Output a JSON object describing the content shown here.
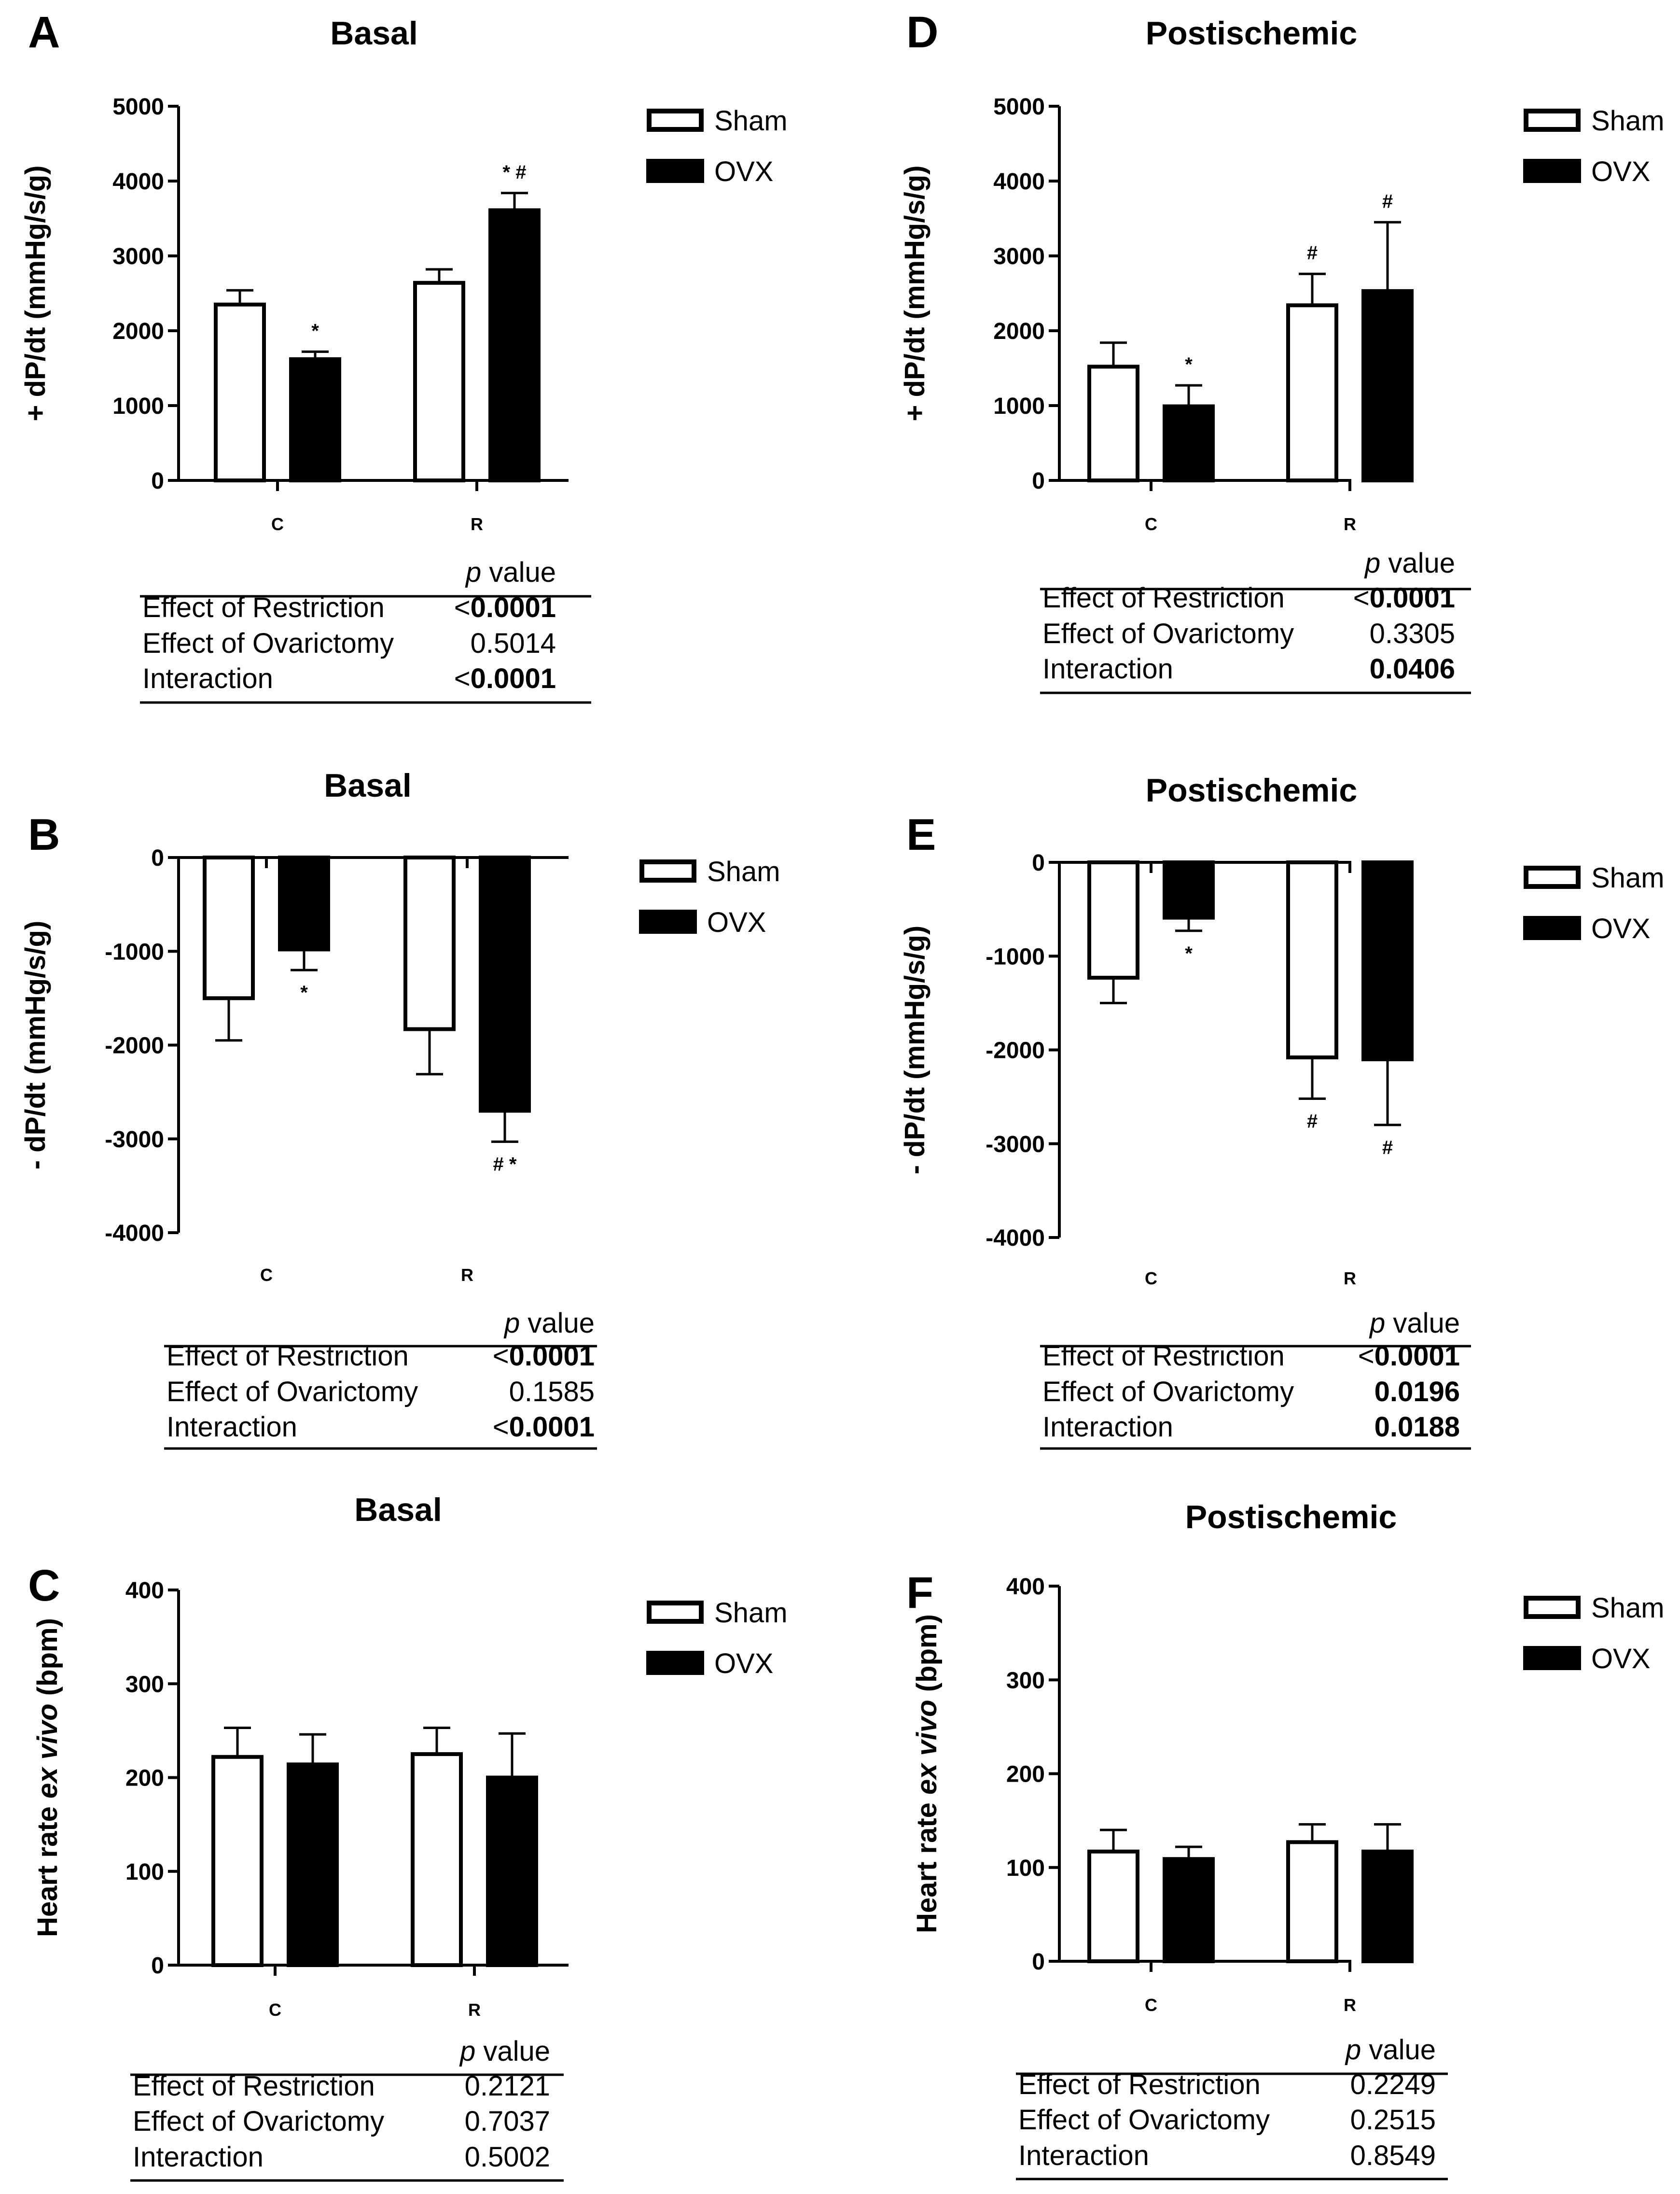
{
  "legend": {
    "sham": "Sham",
    "ovx": "OVX",
    "sham_color": "#ffffff",
    "ovx_color": "#000000"
  },
  "table_header": {
    "p": "p",
    "value": " value"
  },
  "chart_data": [
    {
      "panel": "A",
      "title": "Basal",
      "type": "bar",
      "ylabel": "+ dP/dt (mmHg/s/g)",
      "ylim": [
        0,
        5000
      ],
      "yticks": [
        0,
        1000,
        2000,
        3000,
        4000,
        5000
      ],
      "categories": [
        "C",
        "R"
      ],
      "series": [
        {
          "name": "Sham",
          "values": [
            2350,
            2640
          ],
          "errors": [
            190,
            180
          ]
        },
        {
          "name": "OVX",
          "values": [
            1620,
            3610
          ],
          "errors": [
            100,
            230
          ]
        }
      ],
      "annotations": [
        [
          "",
          "*"
        ],
        [
          "",
          "* #"
        ]
      ],
      "stats": [
        {
          "label": "Effect of Restriction",
          "prefix": "<",
          "value": "0.0001",
          "bold": true
        },
        {
          "label": "Effect of Ovarictomy",
          "prefix": "",
          "value": "0.5014",
          "bold": false
        },
        {
          "label": "Interaction",
          "prefix": "<",
          "value": "0.0001",
          "bold": true
        }
      ]
    },
    {
      "panel": "D",
      "title": "Postischemic",
      "type": "bar",
      "ylabel": "+ dP/dt (mmHg/s/g)",
      "ylim": [
        0,
        5000
      ],
      "yticks": [
        0,
        1000,
        2000,
        3000,
        4000,
        5000
      ],
      "categories": [
        "C",
        "R"
      ],
      "series": [
        {
          "name": "Sham",
          "values": [
            1520,
            2340
          ],
          "errors": [
            320,
            420
          ]
        },
        {
          "name": "OVX",
          "values": [
            990,
            2530
          ],
          "errors": [
            280,
            920
          ]
        }
      ],
      "annotations": [
        [
          "",
          "*"
        ],
        [
          "#",
          "#"
        ]
      ],
      "stats": [
        {
          "label": "Effect of Restriction",
          "prefix": "<",
          "value": "0.0001",
          "bold": true
        },
        {
          "label": "Effect of Ovarictomy",
          "prefix": "",
          "value": "0.3305",
          "bold": false
        },
        {
          "label": "Interaction",
          "prefix": "",
          "value": "0.0406",
          "bold": true
        }
      ]
    },
    {
      "panel": "B",
      "title": "Basal",
      "type": "bar",
      "ylabel": "- dP/dt (mmHg/s/g)",
      "ylim": [
        -4000,
        0
      ],
      "yticks": [
        0,
        -1000,
        -2000,
        -3000,
        -4000
      ],
      "categories": [
        "C",
        "R"
      ],
      "series": [
        {
          "name": "Sham",
          "values": [
            -1500,
            -1830
          ],
          "errors": [
            450,
            480
          ]
        },
        {
          "name": "OVX",
          "values": [
            -980,
            -2700
          ],
          "errors": [
            220,
            330
          ]
        }
      ],
      "annotations": [
        [
          "",
          "*"
        ],
        [
          "",
          "# *"
        ]
      ],
      "stats": [
        {
          "label": "Effect of Restriction",
          "prefix": "<",
          "value": "0.0001",
          "bold": true
        },
        {
          "label": "Effect of Ovarictomy",
          "prefix": "",
          "value": "0.1585",
          "bold": false
        },
        {
          "label": "Interaction",
          "prefix": "<",
          "value": "0.0001",
          "bold": true
        }
      ]
    },
    {
      "panel": "E",
      "title": "Postischemic",
      "type": "bar",
      "ylabel": "- dP/dt (mmHg/s/g)",
      "ylim": [
        -4000,
        0
      ],
      "yticks": [
        0,
        -1000,
        -2000,
        -3000,
        -4000
      ],
      "categories": [
        "C",
        "R"
      ],
      "series": [
        {
          "name": "Sham",
          "values": [
            -1230,
            -2080
          ],
          "errors": [
            270,
            440
          ]
        },
        {
          "name": "OVX",
          "values": [
            -590,
            -2100
          ],
          "errors": [
            140,
            700
          ]
        }
      ],
      "annotations": [
        [
          "",
          "*"
        ],
        [
          "#",
          "#"
        ]
      ],
      "stats": [
        {
          "label": "Effect of Restriction",
          "prefix": "<",
          "value": "0.0001",
          "bold": true
        },
        {
          "label": "Effect of Ovarictomy",
          "prefix": "",
          "value": "0.0196",
          "bold": true
        },
        {
          "label": "Interaction",
          "prefix": "",
          "value": "0.0188",
          "bold": true
        }
      ]
    },
    {
      "panel": "C",
      "title": "Basal",
      "type": "bar",
      "ylabel": "Heart rate ex vivo (bpm)",
      "ylabel_parts": [
        "Heart rate ",
        "ex vivo",
        " (bpm)"
      ],
      "ylim": [
        0,
        400
      ],
      "yticks": [
        0,
        100,
        200,
        300,
        400
      ],
      "categories": [
        "C",
        "R"
      ],
      "series": [
        {
          "name": "Sham",
          "values": [
            222,
            225
          ],
          "errors": [
            31,
            28
          ]
        },
        {
          "name": "OVX",
          "values": [
            214,
            200
          ],
          "errors": [
            32,
            47
          ]
        }
      ],
      "annotations": [
        [
          "",
          ""
        ],
        [
          "",
          ""
        ]
      ],
      "stats": [
        {
          "label": "Effect of Restriction",
          "prefix": "",
          "value": "0.2121",
          "bold": false
        },
        {
          "label": "Effect of Ovarictomy",
          "prefix": "",
          "value": "0.7037",
          "bold": false
        },
        {
          "label": "Interaction",
          "prefix": "",
          "value": "0.5002",
          "bold": false
        }
      ]
    },
    {
      "panel": "F",
      "title": "Postischemic",
      "type": "bar",
      "ylabel": "Heart rate ex vivo (bpm)",
      "ylabel_parts": [
        "Heart rate ",
        "ex vivo",
        " (bpm)"
      ],
      "ylim": [
        0,
        400
      ],
      "yticks": [
        0,
        100,
        200,
        300,
        400
      ],
      "categories": [
        "C",
        "R"
      ],
      "series": [
        {
          "name": "Sham",
          "values": [
            117,
            127
          ],
          "errors": [
            23,
            19
          ]
        },
        {
          "name": "OVX",
          "values": [
            109,
            117
          ],
          "errors": [
            13,
            29
          ]
        }
      ],
      "annotations": [
        [
          "",
          ""
        ],
        [
          "",
          ""
        ]
      ],
      "stats": [
        {
          "label": "Effect of Restriction",
          "prefix": "",
          "value": "0.2249",
          "bold": false
        },
        {
          "label": "Effect of Ovarictomy",
          "prefix": "",
          "value": "0.2515",
          "bold": false
        },
        {
          "label": "Interaction",
          "prefix": "",
          "value": "0.8549",
          "bold": false
        }
      ]
    }
  ]
}
